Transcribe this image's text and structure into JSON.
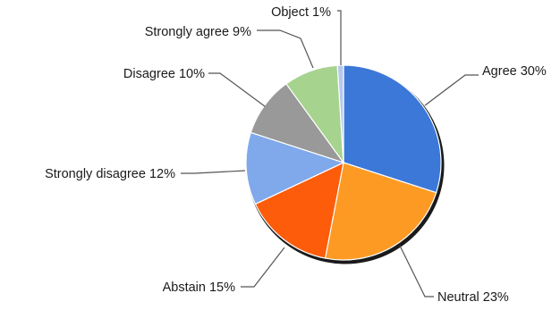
{
  "chart_data": {
    "type": "pie",
    "title": "",
    "slices": [
      {
        "label": "Agree 30%",
        "value": 30,
        "color": "#3b78d8"
      },
      {
        "label": "Neutral 23%",
        "value": 23,
        "color": "#fd9a24"
      },
      {
        "label": "Abstain 15%",
        "value": 15,
        "color": "#fd5c0b"
      },
      {
        "label": "Strongly disagree 12%",
        "value": 12,
        "color": "#7fa9ea"
      },
      {
        "label": "Disagree 10%",
        "value": 10,
        "color": "#999999"
      },
      {
        "label": "Strongly agree 9%",
        "value": 9,
        "color": "#a6d38e"
      },
      {
        "label": "Object 1%",
        "value": 1,
        "color": "#b5c8ee"
      }
    ],
    "start_angle_deg": 0,
    "direction": "clockwise",
    "shadow": true,
    "legend": "none (leader-line labels)"
  }
}
